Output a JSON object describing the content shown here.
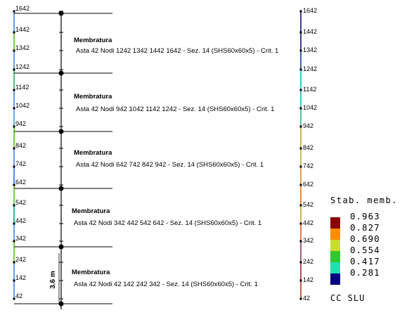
{
  "nodes": [
    "1642",
    "1442",
    "1342",
    "1242",
    "1142",
    "1042",
    "942",
    "842",
    "742",
    "642",
    "542",
    "442",
    "342",
    "242",
    "142",
    "42"
  ],
  "members": [
    {
      "title": "Membratura",
      "desc": "Asta 42 Nodi 1242 1342 1442 1642 - Sez. 14 (SHS60x60x5) - Crit. 1"
    },
    {
      "title": "Membratura",
      "desc": "Asta 42 Nodi 942 1042 1142 1242 - Sez. 14 (SHS60x60x5) - Crit. 1"
    },
    {
      "title": "Membratura",
      "desc": "Asta 42 Nodi 642 742 842 942 - Sez. 14 (SHS60x60x5) - Crit. 1"
    },
    {
      "title": "Membratura",
      "desc": "Asta 42 Nodi 342 442 542 642 - Sez. 14 (SHS60x60x5) - Crit. 1"
    },
    {
      "title": "Membratura",
      "desc": "Asta 42 Nodi 42 142 242 342 - Sez. 14 (SHS60x60x5) - Crit. 1"
    }
  ],
  "dimension_label": "3.6 m",
  "legend": {
    "title": "Stab. memb.",
    "values": [
      "0.963",
      "0.827",
      "0.690",
      "0.554",
      "0.417",
      "0.281"
    ],
    "colors": [
      "#8b0000",
      "#ff8c00",
      "#c8dc32",
      "#32c832",
      "#20e0b0",
      "#000080"
    ],
    "footer": "CC SLU"
  },
  "colors": {
    "left_segments": [
      "#6a9ae0",
      "#7ac850",
      "#6a9ae0",
      "#5ab87a",
      "#6a9ae0",
      "#6aa8e0",
      "#7ac850",
      "#6a9ae0",
      "#5a8ae0",
      "#7ac850",
      "#3ab8a0",
      "#6a9ae0",
      "#7ac850",
      "#6a9ae0",
      "#6a9ae0"
    ],
    "right_segments": [
      "#404090",
      "#404090",
      "#4060b0",
      "#40c8d0",
      "#40c8d0",
      "#50c8a0",
      "#c8b840",
      "#c8c050",
      "#e0a040",
      "#f08a30",
      "#c8b840",
      "#e07a50",
      "#a06070",
      "#b05060",
      "#c06050"
    ]
  }
}
